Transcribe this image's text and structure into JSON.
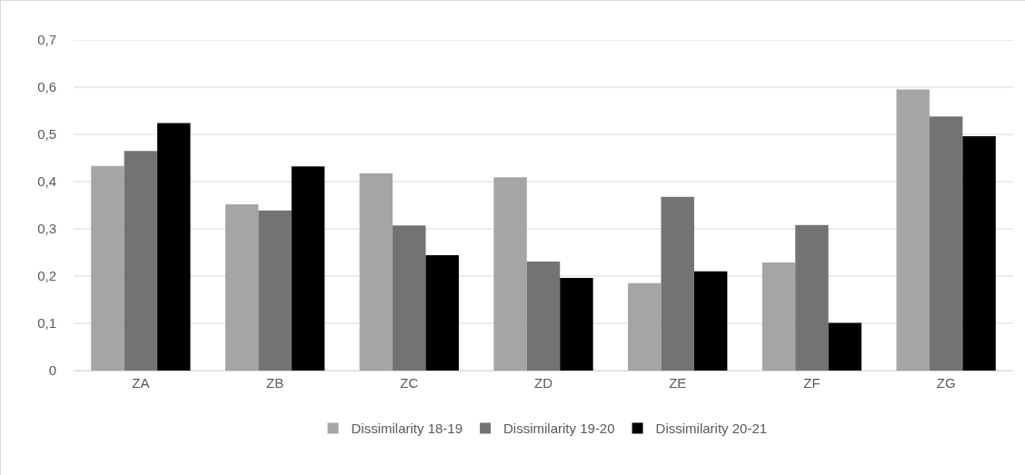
{
  "chart_data": {
    "type": "bar",
    "categories": [
      "ZA",
      "ZB",
      "ZC",
      "ZD",
      "ZE",
      "ZF",
      "ZG"
    ],
    "series": [
      {
        "name": "Dissimilarity 18-19",
        "color": "#a5a5a5",
        "values": [
          0.433,
          0.352,
          0.418,
          0.409,
          0.185,
          0.229,
          0.595
        ]
      },
      {
        "name": "Dissimilarity 19-20",
        "color": "#737373",
        "values": [
          0.465,
          0.339,
          0.307,
          0.231,
          0.368,
          0.308,
          0.538
        ]
      },
      {
        "name": "Dissimilarity 20-21",
        "color": "#000000",
        "values": [
          0.524,
          0.432,
          0.244,
          0.196,
          0.21,
          0.101,
          0.496
        ]
      }
    ],
    "ylim": [
      0,
      0.7
    ],
    "yticks": [
      0,
      {
        "value": 0.1,
        "label": "0,1"
      },
      {
        "value": 0.2,
        "label": "0,2"
      },
      {
        "value": 0.3,
        "label": "0,3"
      },
      {
        "value": 0.4,
        "label": "0,4"
      },
      {
        "value": 0.5,
        "label": "0,5"
      },
      {
        "value": 0.6,
        "label": "0,6"
      },
      {
        "value": 0.7,
        "label": "0,7"
      }
    ],
    "grid": "y",
    "legend": "bottom"
  }
}
